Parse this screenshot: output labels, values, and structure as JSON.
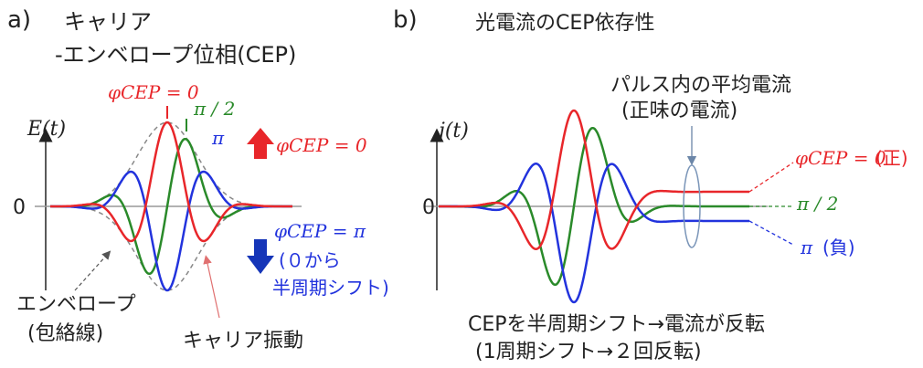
{
  "panel_a": {
    "label": "a)",
    "title_line1": "キャリア",
    "title_line2": "-エンベロープ位相(CEP)",
    "y_axis_label": "E(t)",
    "zero_label": "0",
    "phase_0_label": "φCEP = 0",
    "phase_halfpi_label": "π / 2",
    "phase_pi_label": "π",
    "arrow_up_label": "φCEP = 0",
    "arrow_down_label": "φCEP = π",
    "shift_note_line1": "(０から",
    "shift_note_line2": "半周期シフト)",
    "envelope_label_line1": "エンベロープ",
    "envelope_label_line2": "(包絡線)",
    "carrier_label": "キャリア振動"
  },
  "panel_b": {
    "label": "b)",
    "title": "光電流のCEP依存性",
    "y_axis_label": "j(t)",
    "zero_label": "0",
    "avg_current_line1": "パルス内の平均電流",
    "avg_current_line2": "(正味の電流)",
    "label_phase0": "φCEP = 0",
    "label_phase0_sign": "(正)",
    "label_halfpi": "π / 2",
    "label_pi": "π",
    "label_pi_sign": "(負)",
    "caption_line1": "CEPを半周期シフト→電流が反転",
    "caption_line2": "(1周期シフト→２回反転)"
  },
  "colors": {
    "red": "#e8262a",
    "green": "#2a8a2a",
    "blue": "#2233dd",
    "envelope": "#888888",
    "axis": "#222222"
  }
}
